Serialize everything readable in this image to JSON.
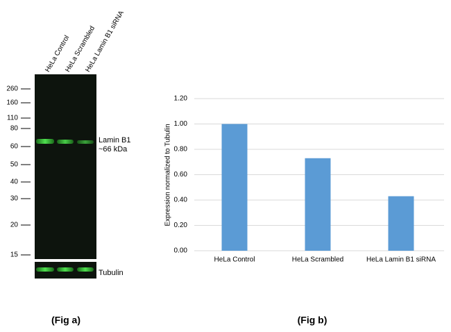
{
  "blot": {
    "lanes": [
      "HeLa Control",
      "HeLa Scrambled",
      "HeLa  Lamin B1 siRNA"
    ],
    "markers": [
      260,
      160,
      110,
      80,
      60,
      50,
      40,
      30,
      20,
      15
    ],
    "band_label": "Lamin B1",
    "band_size": "~66 kDa",
    "loading_control": "Tubulin",
    "caption": "(Fig a)"
  },
  "chart_data": {
    "type": "bar",
    "y_label": "Expression normalized to Tubulin",
    "categories": [
      "HeLa Control",
      "HeLa Scrambled",
      "HeLa Lamin B1 siRNA"
    ],
    "values": [
      1.0,
      0.73,
      0.43
    ],
    "color": "#5b9bd5",
    "ylim": [
      0,
      1.2
    ],
    "yticks": [
      {
        "value": 0,
        "label": "0.00"
      },
      {
        "value": 0.2,
        "label": "0.20"
      },
      {
        "value": 0.4,
        "label": "0.40"
      },
      {
        "value": 0.6,
        "label": "0.60"
      },
      {
        "value": 0.8,
        "label": "0.80"
      },
      {
        "value": 1.0,
        "label": "1.00"
      },
      {
        "value": 1.2,
        "label": "1.20"
      }
    ],
    "grid": true,
    "caption": "(Fig b)"
  }
}
